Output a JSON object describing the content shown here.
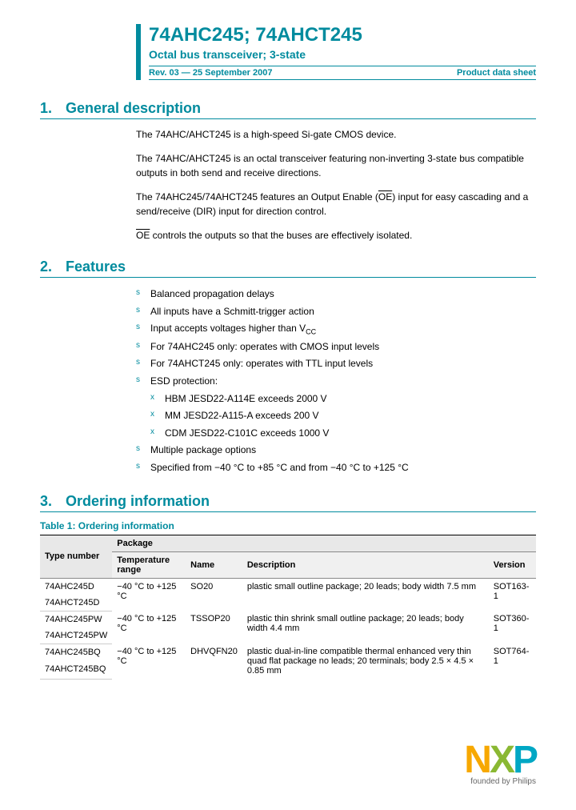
{
  "header": {
    "title": "74AHC245; 74AHCT245",
    "subtitle": "Octal bus transceiver; 3-state",
    "revision": "Rev. 03 — 25 September 2007",
    "doctype": "Product data sheet"
  },
  "sections": {
    "s1": {
      "num": "1.",
      "title": "General description"
    },
    "s2": {
      "num": "2.",
      "title": "Features"
    },
    "s3": {
      "num": "3.",
      "title": "Ordering information"
    }
  },
  "description": {
    "p1": "The 74AHC/AHCT245 is a high-speed Si-gate CMOS device.",
    "p2": "The 74AHC/AHCT245 is an octal transceiver featuring non-inverting 3-state bus compatible outputs in both send and receive directions.",
    "p3a": "The 74AHC245/74AHCT245 features an Output Enable (",
    "p3b": "OE",
    "p3c": ") input for easy cascading and a send/receive (DIR) input for direction control.",
    "p4a": "OE",
    "p4b": " controls the outputs so that the buses are effectively isolated."
  },
  "features": {
    "f1": "Balanced propagation delays",
    "f2": "All inputs have a Schmitt-trigger action",
    "f3a": "Input accepts voltages higher than V",
    "f3b": "CC",
    "f4": "For 74AHC245 only: operates with CMOS input levels",
    "f5": "For 74AHCT245 only: operates with TTL input levels",
    "f6": "ESD protection:",
    "f6a": "HBM JESD22-A114E exceeds 2000 V",
    "f6b": "MM JESD22-A115-A exceeds 200 V",
    "f6c": "CDM JESD22-C101C exceeds 1000 V",
    "f7": "Multiple package options",
    "f8": "Specified from −40 °C to +85 °C and from −40 °C to +125 °C"
  },
  "table": {
    "caption": "Table 1:    Ordering information",
    "headers": {
      "type": "Type number",
      "package": "Package",
      "temp": "Temperature range",
      "name": "Name",
      "desc": "Description",
      "version": "Version"
    },
    "rows": [
      {
        "type1": "74AHC245D",
        "type2": "74AHCT245D",
        "temp": "−40 °C to +125 °C",
        "name": "SO20",
        "desc": "plastic small outline package; 20 leads; body width 7.5 mm",
        "version": "SOT163-1"
      },
      {
        "type1": "74AHC245PW",
        "type2": "74AHCT245PW",
        "temp": "−40 °C to +125 °C",
        "name": "TSSOP20",
        "desc": "plastic thin shrink small outline package; 20 leads; body width 4.4 mm",
        "version": "SOT360-1"
      },
      {
        "type1": "74AHC245BQ",
        "type2": "74AHCT245BQ",
        "temp": "−40 °C to +125 °C",
        "name": "DHVQFN20",
        "desc": "plastic dual-in-line compatible thermal enhanced very thin quad flat package no leads; 20 terminals; body 2.5 × 4.5 × 0.85 mm",
        "version": "SOT764-1"
      }
    ]
  },
  "logo": {
    "n": "N",
    "x": "X",
    "p": "P",
    "tagline": "founded by Philips"
  },
  "colors": {
    "brand": "#008b9e",
    "nxp_n": "#f7a800",
    "nxp_x": "#8ab833",
    "nxp_p": "#00a7c4"
  }
}
